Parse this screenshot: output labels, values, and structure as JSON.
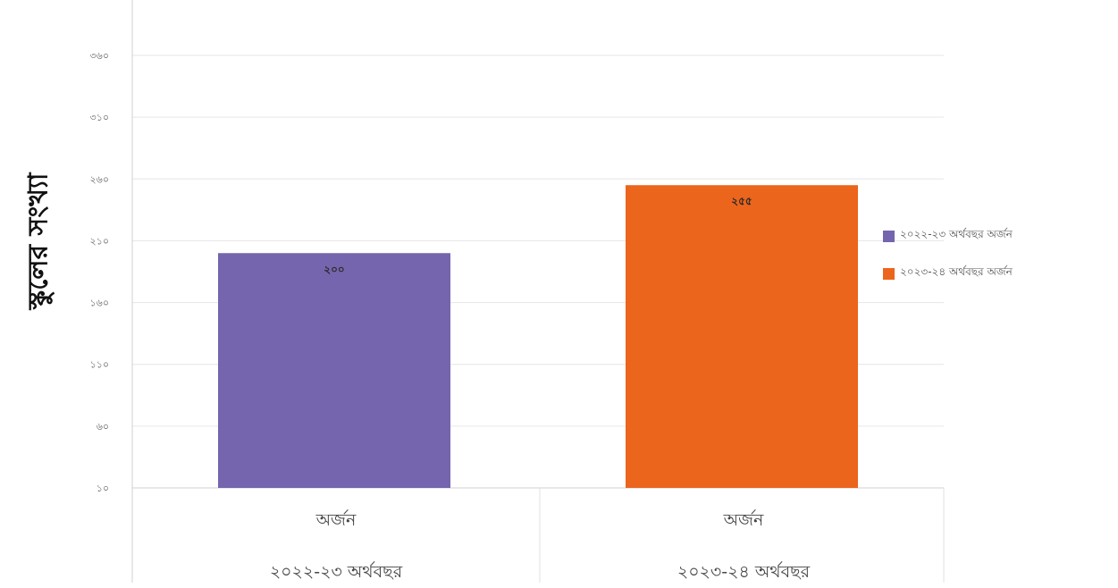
{
  "chart_data": {
    "type": "bar",
    "ylabel": "স্কুলের সংখ্যা",
    "y_ticks": [
      "১০",
      "৬০",
      "১১০",
      "১৬০",
      "২১০",
      "২৬০",
      "৩১০",
      "৩৬০"
    ],
    "ylim": [
      10,
      360
    ],
    "grid": true,
    "legend_position": "right",
    "categories": [
      {
        "line1": "অর্জন",
        "line2": "২০২২-২৩ অর্থবছর"
      },
      {
        "line1": "অর্জন",
        "line2": "২০২৩-২৪ অর্থবছর"
      }
    ],
    "series": [
      {
        "name": "২০২২-২৩ অর্থবছর অর্জন",
        "value": 200,
        "value_label": "২০০",
        "color": "#7565ae"
      },
      {
        "name": "২০২৩-২৪ অর্থবছর অর্জন",
        "value": 255,
        "value_label": "২৫৫",
        "color": "#ec651d"
      }
    ]
  }
}
